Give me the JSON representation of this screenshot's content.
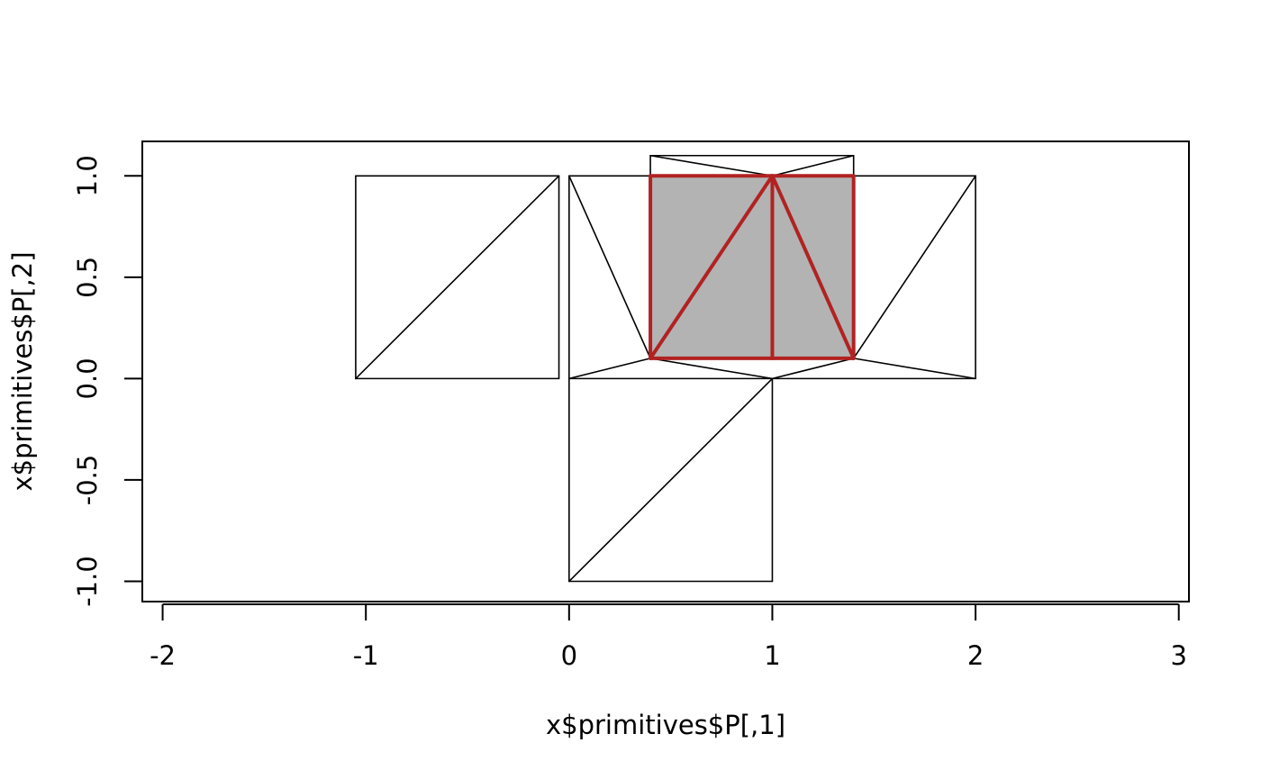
{
  "chart_data": {
    "type": "line",
    "title": "",
    "xlabel": "x$primitives$P[,1]",
    "ylabel": "x$primitives$P[,2]",
    "xlim": [
      -2.1,
      3.05
    ],
    "ylim": [
      -1.1,
      1.17
    ],
    "grid": false,
    "x_ticks": [
      {
        "value": -2,
        "label": "-2"
      },
      {
        "value": -1,
        "label": "-1"
      },
      {
        "value": 0,
        "label": "0"
      },
      {
        "value": 1,
        "label": "1"
      },
      {
        "value": 2,
        "label": "2"
      },
      {
        "value": 3,
        "label": "3"
      }
    ],
    "y_ticks": [
      {
        "value": -1,
        "label": "-1.0"
      },
      {
        "value": -0.5,
        "label": "-0.5"
      },
      {
        "value": 0,
        "label": "0.0"
      },
      {
        "value": 0.5,
        "label": "0.5"
      },
      {
        "value": 1,
        "label": "1.0"
      }
    ],
    "filled_regions": [
      {
        "name": "selected-face",
        "fill": "#b3b3b3",
        "points": [
          [
            0.4,
            0.1
          ],
          [
            1.4,
            0.1
          ],
          [
            1.4,
            1.0
          ],
          [
            0.4,
            1.0
          ]
        ]
      }
    ],
    "black_segments": [
      [
        -1.05,
        0,
        -0.05,
        0
      ],
      [
        -0.05,
        0,
        -0.05,
        1
      ],
      [
        -0.05,
        1,
        -1.05,
        1
      ],
      [
        -1.05,
        1,
        -1.05,
        0
      ],
      [
        -1.05,
        0,
        -0.05,
        1
      ],
      [
        0,
        0,
        2,
        0
      ],
      [
        0,
        0,
        0,
        1
      ],
      [
        0,
        1,
        2,
        1
      ],
      [
        2,
        1,
        2,
        0
      ],
      [
        0,
        1,
        0.4,
        0.1
      ],
      [
        0,
        0,
        0.4,
        0.1
      ],
      [
        0.4,
        0.1,
        1,
        0
      ],
      [
        1,
        0,
        1.4,
        0.1
      ],
      [
        1.4,
        0.1,
        2,
        0
      ],
      [
        1.4,
        0.1,
        2,
        1
      ],
      [
        0.4,
        1.1,
        1.4,
        1.1
      ],
      [
        0.4,
        1.1,
        0.4,
        1
      ],
      [
        1.4,
        1.1,
        1.4,
        1
      ],
      [
        0.4,
        1.1,
        1,
        1
      ],
      [
        1,
        1,
        1.4,
        1.1
      ],
      [
        0,
        0,
        0,
        -1
      ],
      [
        0,
        -1,
        1,
        -1
      ],
      [
        1,
        -1,
        1,
        0
      ],
      [
        0,
        -1,
        1,
        0
      ]
    ],
    "red_color": "#b22222",
    "red_segments": [
      [
        0.4,
        0.1,
        1.4,
        0.1
      ],
      [
        1.4,
        0.1,
        1.4,
        1
      ],
      [
        1.4,
        1,
        0.4,
        1
      ],
      [
        0.4,
        1,
        0.4,
        0.1
      ],
      [
        1,
        0.1,
        1,
        1
      ],
      [
        0.4,
        0.1,
        1,
        1
      ],
      [
        1,
        1,
        1.4,
        0.1
      ]
    ]
  }
}
